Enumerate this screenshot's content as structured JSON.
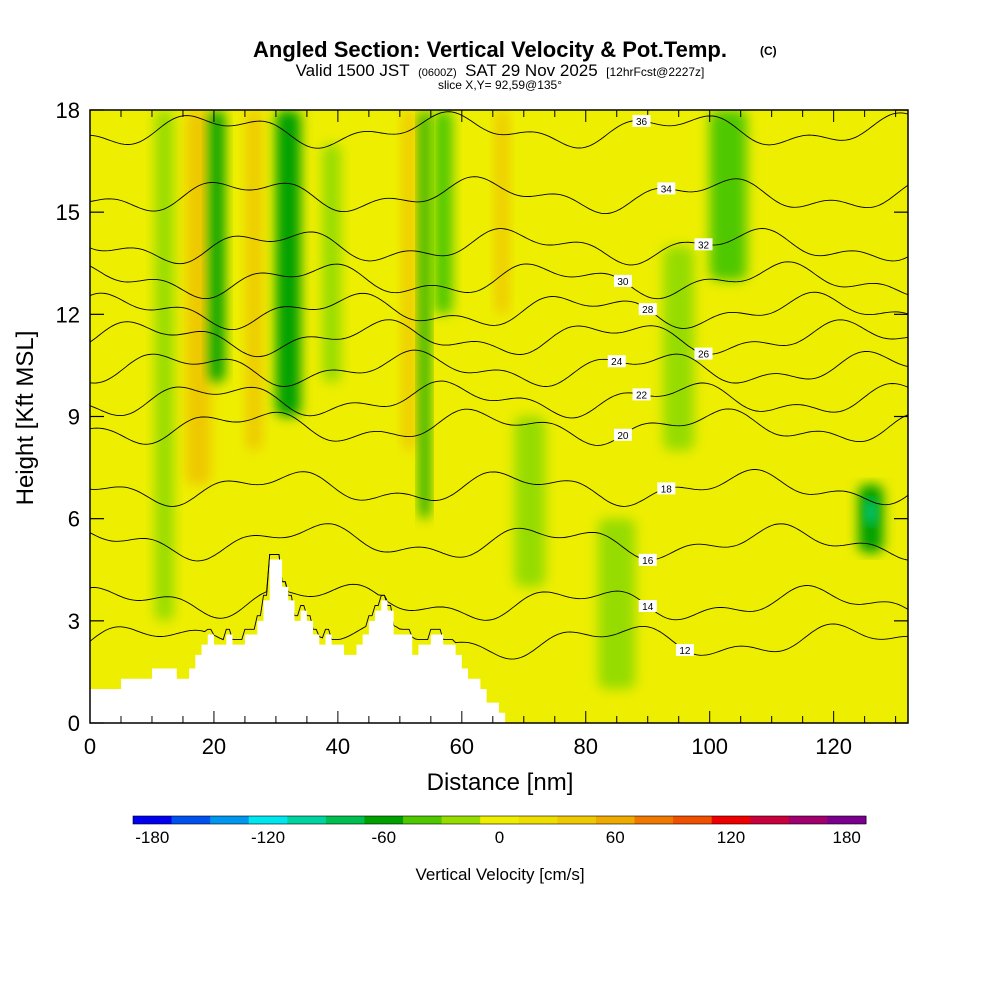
{
  "chart_data": {
    "type": "heatmap",
    "title": "Angled Section: Vertical Velocity & Pot.Temp.",
    "title_unit": "(C)",
    "subtitle_parts": {
      "valid": "Valid 1500 JST",
      "utc": "(0600Z)",
      "date": "SAT 29 Nov 2025",
      "fcst": "[12hrFcst@2227z]"
    },
    "slice_label": "slice X,Y= 92,59@135°",
    "xlabel": "Distance [nm]",
    "ylabel": "Height [Kft MSL]",
    "xlim": [
      0,
      132
    ],
    "ylim": [
      0,
      18
    ],
    "xticks": [
      0,
      20,
      40,
      60,
      80,
      100,
      120
    ],
    "yticks": [
      0,
      3,
      6,
      9,
      12,
      15,
      18
    ],
    "colorbar": {
      "label": "Vertical Velocity [cm/s]",
      "min": -190,
      "max": 190,
      "step": 20,
      "tick_values": [
        -180,
        -120,
        -60,
        0,
        60,
        120,
        180
      ],
      "tick_labels": [
        "-180",
        "-120",
        "-60",
        "0",
        "60",
        "120",
        "180"
      ],
      "colors": [
        "#0000ee",
        "#0050ee",
        "#0096ee",
        "#00e6ee",
        "#00d2a0",
        "#00be50",
        "#00a000",
        "#50c800",
        "#96dc00",
        "#eeee00",
        "#eede00",
        "#eec800",
        "#eeaa00",
        "#ee7800",
        "#ee5000",
        "#ee0000",
        "#c8003c",
        "#a0006e",
        "#78008c"
      ]
    },
    "terrain": {
      "x": [
        0,
        5,
        5,
        10,
        10,
        14,
        14,
        16,
        16,
        17,
        17,
        18,
        18,
        19,
        19,
        20,
        20,
        22,
        22,
        23,
        23,
        25,
        25,
        27,
        27,
        28,
        28,
        29,
        29,
        31,
        31,
        32,
        32,
        33,
        33,
        34,
        34,
        35,
        35,
        36,
        36,
        37,
        37,
        38,
        38,
        39,
        39,
        41,
        41,
        43,
        43,
        44,
        44,
        45,
        45,
        46,
        46,
        47,
        47,
        48,
        48,
        49,
        49,
        52,
        52,
        53,
        53,
        55,
        55,
        57,
        57,
        59,
        59,
        60,
        60,
        61,
        61,
        63,
        63,
        64,
        64,
        66,
        66,
        67,
        67,
        68,
        68,
        70,
        70,
        72,
        72,
        132
      ],
      "height": [
        1.0,
        1.0,
        1.3,
        1.3,
        1.6,
        1.6,
        1.3,
        1.3,
        1.6,
        1.6,
        2.0,
        2.0,
        2.3,
        2.3,
        2.6,
        2.6,
        2.3,
        2.3,
        2.6,
        2.6,
        2.3,
        2.3,
        2.6,
        2.6,
        3.0,
        3.0,
        3.6,
        3.6,
        4.8,
        4.8,
        4.0,
        4.0,
        3.6,
        3.6,
        3.0,
        3.0,
        3.3,
        3.3,
        3.0,
        3.0,
        2.6,
        2.6,
        2.3,
        2.3,
        2.6,
        2.6,
        2.3,
        2.3,
        2.0,
        2.0,
        2.3,
        2.3,
        2.6,
        2.6,
        3.0,
        3.0,
        3.3,
        3.3,
        3.6,
        3.6,
        3.3,
        3.3,
        2.6,
        2.6,
        2.0,
        2.0,
        2.3,
        2.3,
        2.6,
        2.6,
        2.3,
        2.3,
        2.0,
        2.0,
        1.6,
        1.6,
        1.3,
        1.3,
        1.0,
        1.0,
        0.6,
        0.6,
        0.3,
        0.3,
        0.0,
        0.0,
        0.0,
        0.0,
        0.0,
        0.0,
        0.0,
        0.0
      ]
    },
    "velocity_bands": [
      {
        "x": 17.5,
        "w": 4,
        "y0": 7,
        "y1": 18,
        "value": 40
      },
      {
        "x": 20.5,
        "w": 2.5,
        "y0": 10,
        "y1": 18,
        "value": -60
      },
      {
        "x": 26.5,
        "w": 2.5,
        "y0": 8,
        "y1": 18,
        "value": 40
      },
      {
        "x": 32,
        "w": 4,
        "y0": 9,
        "y1": 18,
        "value": -60
      },
      {
        "x": 39,
        "w": 3,
        "y0": 10,
        "y1": 17,
        "value": -20
      },
      {
        "x": 51.5,
        "w": 2,
        "y0": 8,
        "y1": 18,
        "value": 40
      },
      {
        "x": 54,
        "w": 1.5,
        "y0": 6,
        "y1": 18,
        "value": -60
      },
      {
        "x": 57,
        "w": 3,
        "y0": 12,
        "y1": 18,
        "value": -40
      },
      {
        "x": 66.5,
        "w": 2,
        "y0": 12,
        "y1": 18,
        "value": 40
      },
      {
        "x": 71,
        "w": 5,
        "y0": 4,
        "y1": 9,
        "value": -20
      },
      {
        "x": 103,
        "w": 6,
        "y0": 13,
        "y1": 18,
        "value": -40
      },
      {
        "x": 126,
        "w": 4,
        "y0": 5,
        "y1": 7,
        "value": -60
      },
      {
        "x": 126,
        "w": 1.5,
        "y0": 5.8,
        "y1": 6.6,
        "value": -100
      },
      {
        "x": 12,
        "w": 3,
        "y0": 3,
        "y1": 18,
        "value": -20
      },
      {
        "x": 85,
        "w": 6,
        "y0": 1,
        "y1": 6,
        "value": -20
      },
      {
        "x": 95,
        "w": 5,
        "y0": 8,
        "y1": 14,
        "value": -20
      }
    ],
    "theta_levels": [
      {
        "value": 12,
        "base": 2.4,
        "label_x": 96
      },
      {
        "value": 14,
        "base": 3.5,
        "label_x": 90
      },
      {
        "value": 16,
        "base": 5.3,
        "label_x": 90
      },
      {
        "value": 18,
        "base": 6.9,
        "label_x": 93
      },
      {
        "value": 20,
        "base": 8.7,
        "label_x": 86
      },
      {
        "value": 22,
        "base": 9.5,
        "label_x": 89
      },
      {
        "value": 24,
        "base": 10.4,
        "label_x": 85
      },
      {
        "value": 26,
        "base": 11.3,
        "label_x": 99
      },
      {
        "value": 28,
        "base": 12.1,
        "label_x": 90
      },
      {
        "value": 30,
        "base": 13.0,
        "label_x": 86
      },
      {
        "value": 32,
        "base": 14.0,
        "label_x": 99
      },
      {
        "value": 34,
        "base": 15.5,
        "label_x": 93
      },
      {
        "value": 36,
        "base": 17.4,
        "label_x": 89
      }
    ]
  }
}
